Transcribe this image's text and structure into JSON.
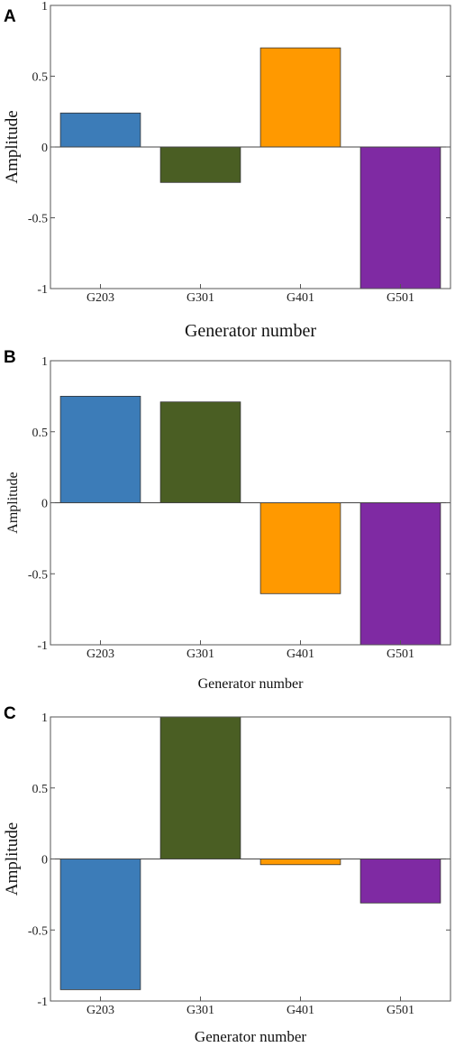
{
  "chart_data": [
    {
      "panel": "A",
      "type": "bar",
      "categories": [
        "G203",
        "G301",
        "G401",
        "G501"
      ],
      "values": [
        0.24,
        -0.25,
        0.7,
        -1.0
      ],
      "colors": [
        "#3c7cb8",
        "#4a5e23",
        "#ff9900",
        "#7f2aa3"
      ],
      "xlabel": "Generator number",
      "ylabel": "Amplitude",
      "ylim": [
        -1,
        1
      ],
      "yticks": [
        "-1",
        "-0.5",
        "0",
        "0.5",
        "1"
      ],
      "grid": false
    },
    {
      "panel": "B",
      "type": "bar",
      "categories": [
        "G203",
        "G301",
        "G401",
        "G501"
      ],
      "values": [
        0.75,
        0.71,
        -0.64,
        -1.0
      ],
      "colors": [
        "#3c7cb8",
        "#4a5e23",
        "#ff9900",
        "#7f2aa3"
      ],
      "xlabel": "Generator number",
      "ylabel": "Amplitude",
      "ylim": [
        -1,
        1
      ],
      "yticks": [
        "-1",
        "-0.5",
        "0",
        "0.5",
        "1"
      ],
      "grid": false
    },
    {
      "panel": "C",
      "type": "bar",
      "categories": [
        "G203",
        "G301",
        "G401",
        "G501"
      ],
      "values": [
        -0.92,
        1.0,
        -0.04,
        -0.31
      ],
      "colors": [
        "#3c7cb8",
        "#4a5e23",
        "#ff9900",
        "#7f2aa3"
      ],
      "xlabel": "Generator number",
      "ylabel": "Amplitude",
      "ylim": [
        -1,
        1
      ],
      "yticks": [
        "-1",
        "-0.5",
        "0",
        "0.5",
        "1"
      ],
      "grid": false
    }
  ]
}
